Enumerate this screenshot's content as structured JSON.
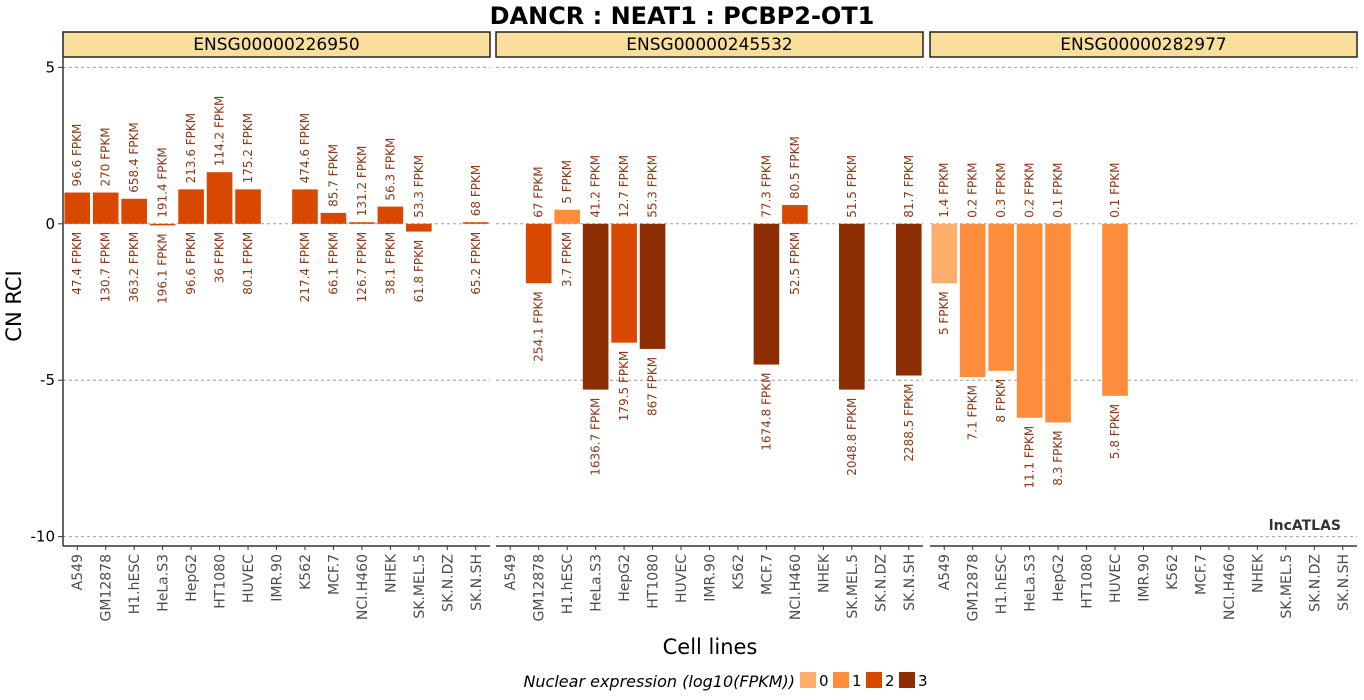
{
  "chart_data": {
    "type": "bar",
    "title": "DANCR : NEAT1 : PCBP2-OT1",
    "xlabel": "Cell lines",
    "ylabel": "CN RCI",
    "ylim": [
      -10,
      5
    ],
    "yticks": [
      5,
      0,
      -5,
      -10
    ],
    "grid": "horizontal dashed at y ticks",
    "categories": [
      "A549",
      "GM12878",
      "H1.hESC",
      "HeLa.S3",
      "HepG2",
      "HT1080",
      "HUVEC",
      "IMR.90",
      "K562",
      "MCF.7",
      "NCI.H460",
      "NHEK",
      "SK.MEL.5",
      "SK.N.DZ",
      "SK.N.SH"
    ],
    "colors": {
      "0": "#fdae6b",
      "1": "#fd8d3c",
      "2": "#d94801",
      "3": "#8c2d04"
    },
    "legend": {
      "title": "Nuclear expression (log10(FPKM))",
      "placement": "bottom",
      "items": [
        {
          "label": "0",
          "color": "#fdae6b"
        },
        {
          "label": "1",
          "color": "#fd8d3c"
        },
        {
          "label": "2",
          "color": "#d94801"
        },
        {
          "label": "3",
          "color": "#8c2d04"
        }
      ]
    },
    "watermark": "lncATLAS",
    "panels": [
      {
        "name": "ENSG00000226950",
        "values": [
          1.0,
          1.0,
          0.8,
          -0.05,
          1.1,
          1.65,
          1.1,
          null,
          1.1,
          0.35,
          0.05,
          0.55,
          -0.25,
          null,
          0.05
        ],
        "levels": [
          2,
          2,
          2,
          2,
          2,
          2,
          2,
          null,
          2,
          2,
          2,
          2,
          2,
          null,
          2
        ],
        "top_labels": [
          "96.6 FPKM",
          "270 FPKM",
          "658.4 FPKM",
          "191.4 FPKM",
          "213.6 FPKM",
          "114.2 FPKM",
          "175.2 FPKM",
          "",
          "474.6 FPKM",
          "85.7 FPKM",
          "131.2 FPKM",
          "56.3 FPKM",
          "53.3 FPKM",
          "",
          "68 FPKM"
        ],
        "bottom_labels": [
          "47.4 FPKM",
          "130.7 FPKM",
          "363.2 FPKM",
          "196.1 FPKM",
          "96.6 FPKM",
          "36 FPKM",
          "80.1 FPKM",
          "",
          "217.4 FPKM",
          "66.1 FPKM",
          "126.7 FPKM",
          "38.1 FPKM",
          "61.8 FPKM",
          "",
          "65.2 FPKM"
        ]
      },
      {
        "name": "ENSG00000245532",
        "values": [
          null,
          -1.9,
          0.45,
          -5.3,
          -3.8,
          -4.0,
          null,
          null,
          null,
          -4.5,
          0.6,
          null,
          -5.3,
          null,
          -4.85
        ],
        "levels": [
          null,
          2,
          1,
          3,
          2,
          3,
          null,
          null,
          null,
          3,
          2,
          null,
          3,
          null,
          3
        ],
        "top_labels": [
          "",
          "67 FPKM",
          "5 FPKM",
          "41.2 FPKM",
          "12.7 FPKM",
          "55.3 FPKM",
          "",
          "",
          "",
          "77.3 FPKM",
          "80.5 FPKM",
          "",
          "51.5 FPKM",
          "",
          "81.7 FPKM"
        ],
        "bottom_labels": [
          "",
          "254.1 FPKM",
          "3.7 FPKM",
          "1636.7 FPKM",
          "179.5 FPKM",
          "867 FPKM",
          "",
          "",
          "",
          "1674.8 FPKM",
          "52.5 FPKM",
          "",
          "2048.8 FPKM",
          "",
          "2288.5 FPKM"
        ]
      },
      {
        "name": "ENSG00000282977",
        "values": [
          -1.9,
          -4.9,
          -4.7,
          -6.2,
          -6.35,
          null,
          -5.5,
          null,
          null,
          null,
          null,
          null,
          null,
          null,
          null
        ],
        "levels": [
          0,
          1,
          1,
          1,
          1,
          null,
          1,
          null,
          null,
          null,
          null,
          null,
          null,
          null,
          null
        ],
        "top_labels": [
          "1.4 FPKM",
          "0.2 FPKM",
          "0.3 FPKM",
          "0.2 FPKM",
          "0.1 FPKM",
          "",
          "0.1 FPKM",
          "",
          "",
          "",
          "",
          "",
          "",
          "",
          ""
        ],
        "bottom_labels": [
          "5 FPKM",
          "7.1 FPKM",
          "8 FPKM",
          "11.1 FPKM",
          "8.3 FPKM",
          "",
          "5.8 FPKM",
          "",
          "",
          "",
          "",
          "",
          "",
          "",
          ""
        ]
      }
    ]
  }
}
